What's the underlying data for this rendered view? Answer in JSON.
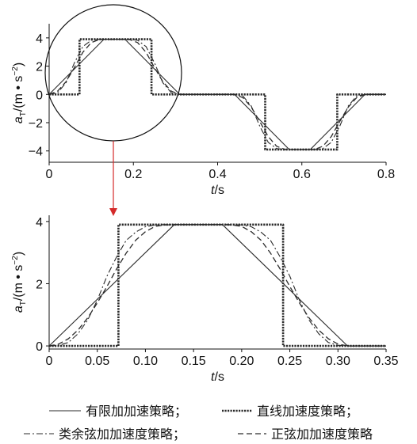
{
  "chart_data": [
    {
      "type": "line",
      "panel": "full",
      "xlabel": "t/s",
      "ylabel": "a_T/(m • s^-2)",
      "ylabel_main": "a",
      "ylabel_sub": "T",
      "ylabel_unit": "/(m • s",
      "ylabel_exp": "−2",
      "ylabel_close": ")",
      "xlim": [
        0,
        0.8
      ],
      "ylim": [
        -4.8,
        5
      ],
      "xticks": [
        0,
        0.2,
        0.4,
        0.6,
        0.8
      ],
      "xtick_labels": [
        "0",
        "0.2",
        "0.4",
        "0.6",
        "0.8"
      ],
      "yticks": [
        -4,
        -2,
        0,
        2,
        4
      ],
      "ytick_labels": [
        "−4",
        "−2",
        "0",
        "2",
        "4"
      ],
      "annotation": "magnifying circle around 0–0.28 s with red arrow pointing to zoomed panel",
      "series": [
        {
          "name": "有限加加速策略",
          "style": "solid",
          "x": [
            0,
            0.13,
            0.18,
            0.31,
            0.44,
            0.57,
            0.62,
            0.75,
            0.8
          ],
          "y": [
            0,
            3.9,
            3.9,
            0,
            0,
            -3.9,
            -3.9,
            0,
            0
          ]
        },
        {
          "name": "直线加速度策略",
          "style": "dotted",
          "x": [
            0,
            0.072,
            0.072,
            0.243,
            0.243,
            0.513,
            0.513,
            0.684,
            0.684,
            0.8
          ],
          "y": [
            0,
            0,
            3.9,
            3.9,
            0,
            0,
            -3.9,
            -3.9,
            0,
            0
          ]
        },
        {
          "name": "类余弦加加速度策略",
          "style": "dashdot",
          "x": [
            0,
            0.02,
            0.04,
            0.06,
            0.08,
            0.1,
            0.12,
            0.13,
            0.18,
            0.19,
            0.21,
            0.23,
            0.25,
            0.27,
            0.29,
            0.31,
            0.44,
            0.46,
            0.48,
            0.5,
            0.52,
            0.54,
            0.56,
            0.57,
            0.62,
            0.63,
            0.65,
            0.67,
            0.69,
            0.71,
            0.73,
            0.75,
            0.8
          ],
          "y": [
            0,
            0.11,
            0.83,
            2.24,
            3.39,
            3.83,
            3.9,
            3.9,
            3.9,
            3.9,
            3.83,
            3.39,
            2.24,
            0.83,
            0.11,
            0,
            0,
            -0.11,
            -0.83,
            -2.24,
            -3.39,
            -3.83,
            -3.9,
            -3.9,
            -3.9,
            -3.9,
            -3.83,
            -3.39,
            -2.24,
            -0.83,
            -0.11,
            0,
            0
          ]
        },
        {
          "name": "正弦加加速度策略",
          "style": "dashed",
          "x": [
            0,
            0.02,
            0.04,
            0.06,
            0.08,
            0.1,
            0.12,
            0.13,
            0.18,
            0.19,
            0.21,
            0.23,
            0.25,
            0.27,
            0.29,
            0.31,
            0.44,
            0.46,
            0.48,
            0.5,
            0.52,
            0.54,
            0.56,
            0.57,
            0.62,
            0.63,
            0.65,
            0.67,
            0.69,
            0.71,
            0.73,
            0.75,
            0.8
          ],
          "y": [
            0,
            0.23,
            0.9,
            1.91,
            2.98,
            3.67,
            3.89,
            3.9,
            3.9,
            3.89,
            3.67,
            2.98,
            1.91,
            0.9,
            0.23,
            0,
            0,
            -0.23,
            -0.9,
            -1.91,
            -2.98,
            -3.67,
            -3.89,
            -3.9,
            -3.9,
            -3.89,
            -3.67,
            -2.98,
            -1.91,
            -0.9,
            -0.23,
            0,
            0
          ]
        }
      ]
    },
    {
      "type": "line",
      "panel": "zoom",
      "xlabel": "t/s",
      "ylabel": "a_T/(m • s^-2)",
      "ylabel_main": "a",
      "ylabel_sub": "T",
      "ylabel_unit": "/(m • s",
      "ylabel_exp": "−2",
      "ylabel_close": ")",
      "xlim": [
        0,
        0.35
      ],
      "ylim": [
        -0.1,
        4.2
      ],
      "xticks": [
        0,
        0.05,
        0.1,
        0.15,
        0.2,
        0.25,
        0.3,
        0.35
      ],
      "xtick_labels": [
        "0",
        "0.05",
        "0.10",
        "0.15",
        "0.20",
        "0.25",
        "0.30",
        "0.35"
      ],
      "yticks": [
        0,
        2,
        4
      ],
      "ytick_labels": [
        "0",
        "2",
        "4"
      ],
      "series": [
        {
          "name": "有限加加速策略",
          "style": "solid",
          "x": [
            0,
            0.13,
            0.18,
            0.31,
            0.35
          ],
          "y": [
            0,
            3.9,
            3.9,
            0,
            0
          ]
        },
        {
          "name": "直线加速度策略",
          "style": "dotted",
          "x": [
            0,
            0.072,
            0.072,
            0.243,
            0.243,
            0.35
          ],
          "y": [
            0,
            0,
            3.9,
            3.9,
            0,
            0
          ]
        },
        {
          "name": "类余弦加加速度策略",
          "style": "dashdot",
          "x": [
            0,
            0.01,
            0.02,
            0.03,
            0.04,
            0.05,
            0.06,
            0.07,
            0.08,
            0.09,
            0.1,
            0.11,
            0.12,
            0.13,
            0.18,
            0.19,
            0.2,
            0.21,
            0.22,
            0.23,
            0.24,
            0.25,
            0.26,
            0.27,
            0.28,
            0.29,
            0.3,
            0.31,
            0.35
          ],
          "y": [
            0,
            0.02,
            0.11,
            0.39,
            0.83,
            1.47,
            2.24,
            2.86,
            3.39,
            3.66,
            3.83,
            3.89,
            3.9,
            3.9,
            3.9,
            3.9,
            3.89,
            3.83,
            3.66,
            3.39,
            2.86,
            2.24,
            1.47,
            0.83,
            0.39,
            0.11,
            0.02,
            0,
            0
          ]
        },
        {
          "name": "正弦加加速度策略",
          "style": "dashed",
          "x": [
            0,
            0.01,
            0.02,
            0.03,
            0.04,
            0.05,
            0.06,
            0.07,
            0.08,
            0.09,
            0.1,
            0.11,
            0.12,
            0.13,
            0.18,
            0.19,
            0.2,
            0.21,
            0.22,
            0.23,
            0.24,
            0.25,
            0.26,
            0.27,
            0.28,
            0.29,
            0.3,
            0.31,
            0.35
          ],
          "y": [
            0,
            0.06,
            0.23,
            0.51,
            0.9,
            1.38,
            1.91,
            2.47,
            2.98,
            3.4,
            3.67,
            3.84,
            3.89,
            3.9,
            3.9,
            3.89,
            3.84,
            3.67,
            3.4,
            2.98,
            2.47,
            1.91,
            1.38,
            0.9,
            0.51,
            0.23,
            0.06,
            0,
            0
          ]
        }
      ]
    }
  ],
  "legend": {
    "items": [
      {
        "label": "有限加加速策略；",
        "style": "solid"
      },
      {
        "label": "直线加速度策略；",
        "style": "dotted"
      },
      {
        "label": "类余弦加加速度策略；",
        "style": "dashdot"
      },
      {
        "label": "正弦加加速度策略",
        "style": "dashed"
      }
    ]
  },
  "colors": {
    "line": "#2a2a2a",
    "axis": "#111111",
    "arrow": "#d42a2a",
    "circle": "#111111"
  }
}
